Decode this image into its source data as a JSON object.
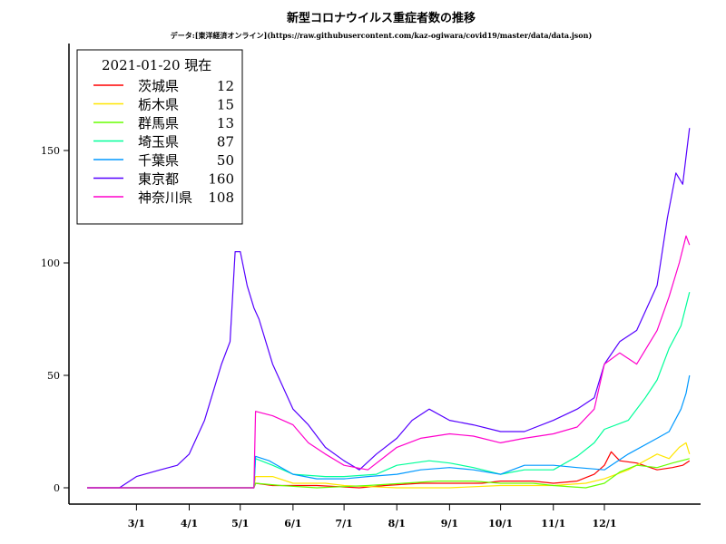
{
  "chart_data": {
    "type": "line",
    "title": "新型コロナウイルス重症者数の推移",
    "subtitle": "データ:[東洋経済オンライン](https://raw.githubusercontent.com/kaz-ogiwara/covid19/master/data/data.json)",
    "legend_header": "2021-01-20 現在",
    "legend_placement": "top-left",
    "xlabel": "",
    "ylabel": "",
    "ylim": [
      0,
      170
    ],
    "yticks": [
      0,
      50,
      100,
      150
    ],
    "x_start": "2020-02-01",
    "x_end": "2021-01-20",
    "xticks": [
      {
        "date": "2020-03-01",
        "label": "3/1"
      },
      {
        "date": "2020-04-01",
        "label": "4/1"
      },
      {
        "date": "2020-05-01",
        "label": "5/1"
      },
      {
        "date": "2020-06-01",
        "label": "6/1"
      },
      {
        "date": "2020-07-01",
        "label": "7/1"
      },
      {
        "date": "2020-08-01",
        "label": "8/1"
      },
      {
        "date": "2020-09-01",
        "label": "9/1"
      },
      {
        "date": "2020-10-01",
        "label": "10/1"
      },
      {
        "date": "2020-11-01",
        "label": "11/1"
      },
      {
        "date": "2020-12-01",
        "label": "12/1"
      }
    ],
    "series": [
      {
        "name": "茨城県",
        "latest": "12",
        "color": "#ff0000",
        "points": [
          [
            "2020-02-01",
            0
          ],
          [
            "2020-05-09",
            0
          ],
          [
            "2020-05-10",
            2
          ],
          [
            "2020-05-20",
            1
          ],
          [
            "2020-06-15",
            1
          ],
          [
            "2020-07-10",
            0
          ],
          [
            "2020-07-25",
            1
          ],
          [
            "2020-08-15",
            2
          ],
          [
            "2020-09-01",
            2
          ],
          [
            "2020-09-20",
            2
          ],
          [
            "2020-10-01",
            3
          ],
          [
            "2020-10-20",
            3
          ],
          [
            "2020-11-01",
            2
          ],
          [
            "2020-11-15",
            3
          ],
          [
            "2020-11-25",
            6
          ],
          [
            "2020-12-01",
            10
          ],
          [
            "2020-12-05",
            16
          ],
          [
            "2020-12-10",
            12
          ],
          [
            "2020-12-20",
            11
          ],
          [
            "2021-01-01",
            8
          ],
          [
            "2021-01-10",
            9
          ],
          [
            "2021-01-16",
            10
          ],
          [
            "2021-01-20",
            12
          ]
        ]
      },
      {
        "name": "栃木県",
        "latest": "15",
        "color": "#ffe600",
        "points": [
          [
            "2020-02-01",
            0
          ],
          [
            "2020-05-09",
            0
          ],
          [
            "2020-05-10",
            5
          ],
          [
            "2020-05-20",
            5
          ],
          [
            "2020-06-01",
            2
          ],
          [
            "2020-06-20",
            2
          ],
          [
            "2020-07-01",
            1
          ],
          [
            "2020-08-01",
            0
          ],
          [
            "2020-09-01",
            0
          ],
          [
            "2020-10-01",
            1
          ],
          [
            "2020-11-01",
            1
          ],
          [
            "2020-11-20",
            2
          ],
          [
            "2020-12-01",
            4
          ],
          [
            "2020-12-15",
            8
          ],
          [
            "2021-01-01",
            15
          ],
          [
            "2021-01-08",
            13
          ],
          [
            "2021-01-14",
            18
          ],
          [
            "2021-01-18",
            20
          ],
          [
            "2021-01-20",
            15
          ]
        ]
      },
      {
        "name": "群馬県",
        "latest": "13",
        "color": "#66ff00",
        "points": [
          [
            "2020-02-01",
            0
          ],
          [
            "2020-05-09",
            0
          ],
          [
            "2020-05-10",
            2
          ],
          [
            "2020-05-25",
            1
          ],
          [
            "2020-06-15",
            0
          ],
          [
            "2020-07-15",
            1
          ],
          [
            "2020-08-05",
            2
          ],
          [
            "2020-08-25",
            3
          ],
          [
            "2020-09-15",
            3
          ],
          [
            "2020-10-01",
            2
          ],
          [
            "2020-10-20",
            2
          ],
          [
            "2020-11-01",
            1
          ],
          [
            "2020-11-20",
            0
          ],
          [
            "2020-12-01",
            2
          ],
          [
            "2020-12-10",
            7
          ],
          [
            "2020-12-20",
            10
          ],
          [
            "2021-01-01",
            9
          ],
          [
            "2021-01-10",
            11
          ],
          [
            "2021-01-20",
            13
          ]
        ]
      },
      {
        "name": "埼玉県",
        "latest": "87",
        "color": "#00ff99",
        "points": [
          [
            "2020-02-01",
            0
          ],
          [
            "2020-05-09",
            0
          ],
          [
            "2020-05-10",
            13
          ],
          [
            "2020-05-20",
            10
          ],
          [
            "2020-06-01",
            6
          ],
          [
            "2020-06-20",
            5
          ],
          [
            "2020-07-01",
            5
          ],
          [
            "2020-07-20",
            6
          ],
          [
            "2020-08-01",
            10
          ],
          [
            "2020-08-20",
            12
          ],
          [
            "2020-09-01",
            11
          ],
          [
            "2020-09-15",
            9
          ],
          [
            "2020-10-01",
            6
          ],
          [
            "2020-10-15",
            8
          ],
          [
            "2020-11-01",
            8
          ],
          [
            "2020-11-15",
            14
          ],
          [
            "2020-11-25",
            20
          ],
          [
            "2020-12-01",
            26
          ],
          [
            "2020-12-15",
            30
          ],
          [
            "2020-12-25",
            40
          ],
          [
            "2021-01-01",
            48
          ],
          [
            "2021-01-08",
            62
          ],
          [
            "2021-01-15",
            72
          ],
          [
            "2021-01-20",
            87
          ]
        ]
      },
      {
        "name": "千葉県",
        "latest": "50",
        "color": "#0099ff",
        "points": [
          [
            "2020-02-01",
            0
          ],
          [
            "2020-05-09",
            0
          ],
          [
            "2020-05-10",
            14
          ],
          [
            "2020-05-18",
            12
          ],
          [
            "2020-06-01",
            6
          ],
          [
            "2020-06-15",
            4
          ],
          [
            "2020-07-01",
            4
          ],
          [
            "2020-07-15",
            5
          ],
          [
            "2020-08-01",
            6
          ],
          [
            "2020-08-15",
            8
          ],
          [
            "2020-09-01",
            9
          ],
          [
            "2020-09-15",
            8
          ],
          [
            "2020-10-01",
            6
          ],
          [
            "2020-10-15",
            10
          ],
          [
            "2020-11-01",
            10
          ],
          [
            "2020-11-15",
            9
          ],
          [
            "2020-12-01",
            8
          ],
          [
            "2020-12-15",
            15
          ],
          [
            "2021-01-01",
            22
          ],
          [
            "2021-01-08",
            25
          ],
          [
            "2021-01-15",
            35
          ],
          [
            "2021-01-18",
            42
          ],
          [
            "2021-01-20",
            50
          ]
        ]
      },
      {
        "name": "東京都",
        "latest": "160",
        "color": "#5500ff",
        "points": [
          [
            "2020-02-01",
            0
          ],
          [
            "2020-02-20",
            0
          ],
          [
            "2020-03-01",
            5
          ],
          [
            "2020-03-15",
            8
          ],
          [
            "2020-03-25",
            10
          ],
          [
            "2020-04-01",
            15
          ],
          [
            "2020-04-10",
            30
          ],
          [
            "2020-04-20",
            55
          ],
          [
            "2020-04-25",
            65
          ],
          [
            "2020-04-28",
            105
          ],
          [
            "2020-05-01",
            105
          ],
          [
            "2020-05-05",
            90
          ],
          [
            "2020-05-09",
            80
          ],
          [
            "2020-05-12",
            75
          ],
          [
            "2020-05-20",
            55
          ],
          [
            "2020-06-01",
            35
          ],
          [
            "2020-06-10",
            28
          ],
          [
            "2020-06-20",
            18
          ],
          [
            "2020-07-01",
            12
          ],
          [
            "2020-07-10",
            8
          ],
          [
            "2020-07-20",
            15
          ],
          [
            "2020-08-01",
            22
          ],
          [
            "2020-08-10",
            30
          ],
          [
            "2020-08-20",
            35
          ],
          [
            "2020-09-01",
            30
          ],
          [
            "2020-09-15",
            28
          ],
          [
            "2020-10-01",
            25
          ],
          [
            "2020-10-15",
            25
          ],
          [
            "2020-11-01",
            30
          ],
          [
            "2020-11-15",
            35
          ],
          [
            "2020-11-25",
            40
          ],
          [
            "2020-12-01",
            55
          ],
          [
            "2020-12-10",
            65
          ],
          [
            "2020-12-20",
            70
          ],
          [
            "2021-01-01",
            90
          ],
          [
            "2021-01-07",
            120
          ],
          [
            "2021-01-12",
            140
          ],
          [
            "2021-01-16",
            135
          ],
          [
            "2021-01-20",
            160
          ]
        ]
      },
      {
        "name": "神奈川県",
        "latest": "108",
        "color": "#ff00cc",
        "points": [
          [
            "2020-02-01",
            0
          ],
          [
            "2020-05-09",
            0
          ],
          [
            "2020-05-10",
            34
          ],
          [
            "2020-05-20",
            32
          ],
          [
            "2020-06-01",
            28
          ],
          [
            "2020-06-10",
            20
          ],
          [
            "2020-06-20",
            15
          ],
          [
            "2020-07-01",
            10
          ],
          [
            "2020-07-15",
            8
          ],
          [
            "2020-08-01",
            18
          ],
          [
            "2020-08-15",
            22
          ],
          [
            "2020-09-01",
            24
          ],
          [
            "2020-09-15",
            23
          ],
          [
            "2020-10-01",
            20
          ],
          [
            "2020-10-15",
            22
          ],
          [
            "2020-11-01",
            24
          ],
          [
            "2020-11-15",
            27
          ],
          [
            "2020-11-25",
            35
          ],
          [
            "2020-12-01",
            55
          ],
          [
            "2020-12-10",
            60
          ],
          [
            "2020-12-20",
            55
          ],
          [
            "2021-01-01",
            70
          ],
          [
            "2021-01-08",
            85
          ],
          [
            "2021-01-14",
            100
          ],
          [
            "2021-01-18",
            112
          ],
          [
            "2021-01-20",
            108
          ]
        ]
      }
    ]
  }
}
